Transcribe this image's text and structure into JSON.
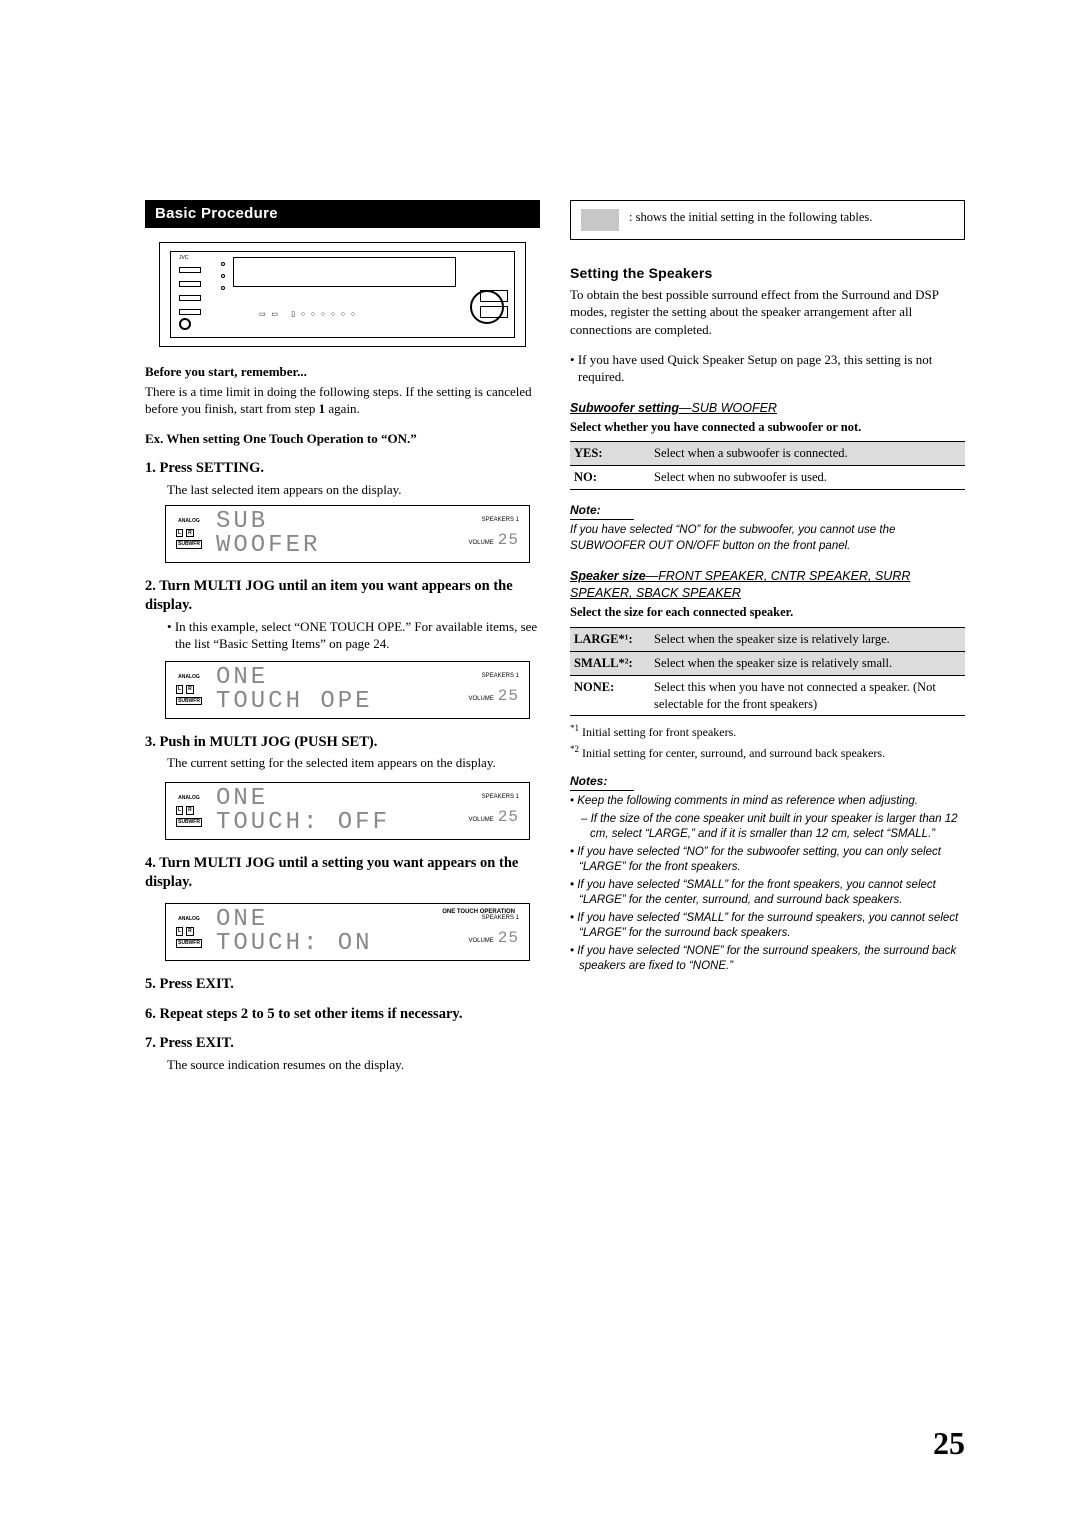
{
  "left": {
    "section_title": "Basic Procedure",
    "receiver_brand": "JVC",
    "before_bold": "Before you start, remember...",
    "before_text_a": "There is a time limit in doing the following steps. If the setting is canceled before you finish, start from step ",
    "before_step_ref": "1",
    "before_text_b": " again.",
    "example_bold": "Ex. When setting One Touch Operation to “ON.”",
    "steps": [
      {
        "h": "1. Press SETTING.",
        "sub": "The last selected item appears on the display.",
        "lcd": {
          "line1": "SUB",
          "line2": "WOOFER",
          "speakers": "SPEAKERS 1",
          "volume_label": "VOLUME",
          "volume": "25",
          "analog": "ANALOG",
          "L": "L",
          "R": "R",
          "SUBWFR": "SUBWFR"
        }
      },
      {
        "h": "2. Turn MULTI JOG until an item you want appears on the display.",
        "bullet": "In this example, select “ONE TOUCH OPE.” For available items, see the list “Basic Setting Items” on page 24.",
        "lcd": {
          "line1": "ONE",
          "line2": "TOUCH OPE",
          "speakers": "SPEAKERS 1",
          "volume_label": "VOLUME",
          "volume": "25",
          "analog": "ANALOG",
          "L": "L",
          "R": "R",
          "SUBWFR": "SUBWFR"
        }
      },
      {
        "h": "3. Push in MULTI JOG (PUSH SET).",
        "sub": "The current setting for the selected item appears on the display.",
        "lcd": {
          "line1": "ONE",
          "line2": "TOUCH: OFF",
          "speakers": "SPEAKERS 1",
          "volume_label": "VOLUME",
          "volume": "25",
          "analog": "ANALOG",
          "L": "L",
          "R": "R",
          "SUBWFR": "SUBWFR"
        }
      },
      {
        "h": "4. Turn MULTI JOG until a setting you want appears on the display.",
        "lcd": {
          "line1": "ONE",
          "line2": "TOUCH: ON",
          "top_ind": "ONE TOUCH OPERATION",
          "speakers": "SPEAKERS 1",
          "volume_label": "VOLUME",
          "volume": "25",
          "analog": "ANALOG",
          "L": "L",
          "R": "R",
          "SUBWFR": "SUBWFR"
        }
      },
      {
        "h": "5. Press EXIT."
      },
      {
        "h": "6. Repeat steps 2 to 5 to set other items if necessary."
      },
      {
        "h": "7. Press EXIT.",
        "sub": "The source indication resumes on the display."
      }
    ]
  },
  "right": {
    "legend_text": ": shows the initial setting in the following tables.",
    "legend_swatch_color": "#c7c7c7",
    "setting_speakers_h": "Setting the Speakers",
    "setting_speakers_p": "To obtain the best possible surround effect from the Surround and DSP modes, register the setting about the speaker arrangement after all connections are completed.",
    "setting_speakers_bullet": "If you have used Quick Speaker Setup on page 23, this setting is not required.",
    "subwoofer": {
      "h_bold": "Subwoofer setting",
      "h_em": "—SUB WOOFER",
      "sub": "Select whether you have connected a subwoofer or not.",
      "rows": [
        {
          "k": "YES:",
          "v": "Select when a subwoofer is connected.",
          "shaded": true
        },
        {
          "k": "NO:",
          "v": "Select when no subwoofer is used.",
          "shaded": false
        }
      ]
    },
    "note1": {
      "h": "Note:",
      "body": "If you have selected “NO” for the subwoofer, you cannot use the SUBWOOFER OUT ON/OFF button on the front panel."
    },
    "speaker_size": {
      "h_bold": "Speaker size",
      "h_em": "—FRONT SPEAKER, CNTR SPEAKER, SURR SPEAKER, SBACK SPEAKER",
      "sub": "Select the size for each connected speaker.",
      "rows": [
        {
          "k": "LARGE*¹:",
          "v": "Select when the speaker size is relatively large.",
          "shaded": true
        },
        {
          "k": "SMALL*²:",
          "v": "Select when the speaker size is relatively small.",
          "shaded": true
        },
        {
          "k": "NONE:",
          "v": "Select this when you have not connected a speaker. (Not selectable for the front speakers)",
          "shaded": false
        }
      ]
    },
    "footnotes": [
      {
        "sup": "*1",
        "t": "Initial setting for front speakers."
      },
      {
        "sup": "*2",
        "t": "Initial setting for center, surround, and surround back speakers."
      }
    ],
    "notes2": {
      "h": "Notes:",
      "items": [
        "Keep the following comments in mind as reference when adjusting.",
        {
          "sub": true,
          "t": "If the size of the cone speaker unit built in your speaker is larger than 12 cm, select “LARGE,” and if it is smaller than 12 cm, select “SMALL.”"
        },
        "If you have selected “NO” for the subwoofer setting, you can only select “LARGE” for the front speakers.",
        "If you have selected “SMALL” for the front speakers, you cannot select “LARGE” for the center, surround, and surround back speakers.",
        "If you have selected “SMALL” for the surround speakers, you cannot select “LARGE” for the surround back speakers.",
        "If you have selected “NONE” for the surround speakers, the surround back speakers are fixed to “NONE.”"
      ]
    }
  },
  "page_number": "25"
}
